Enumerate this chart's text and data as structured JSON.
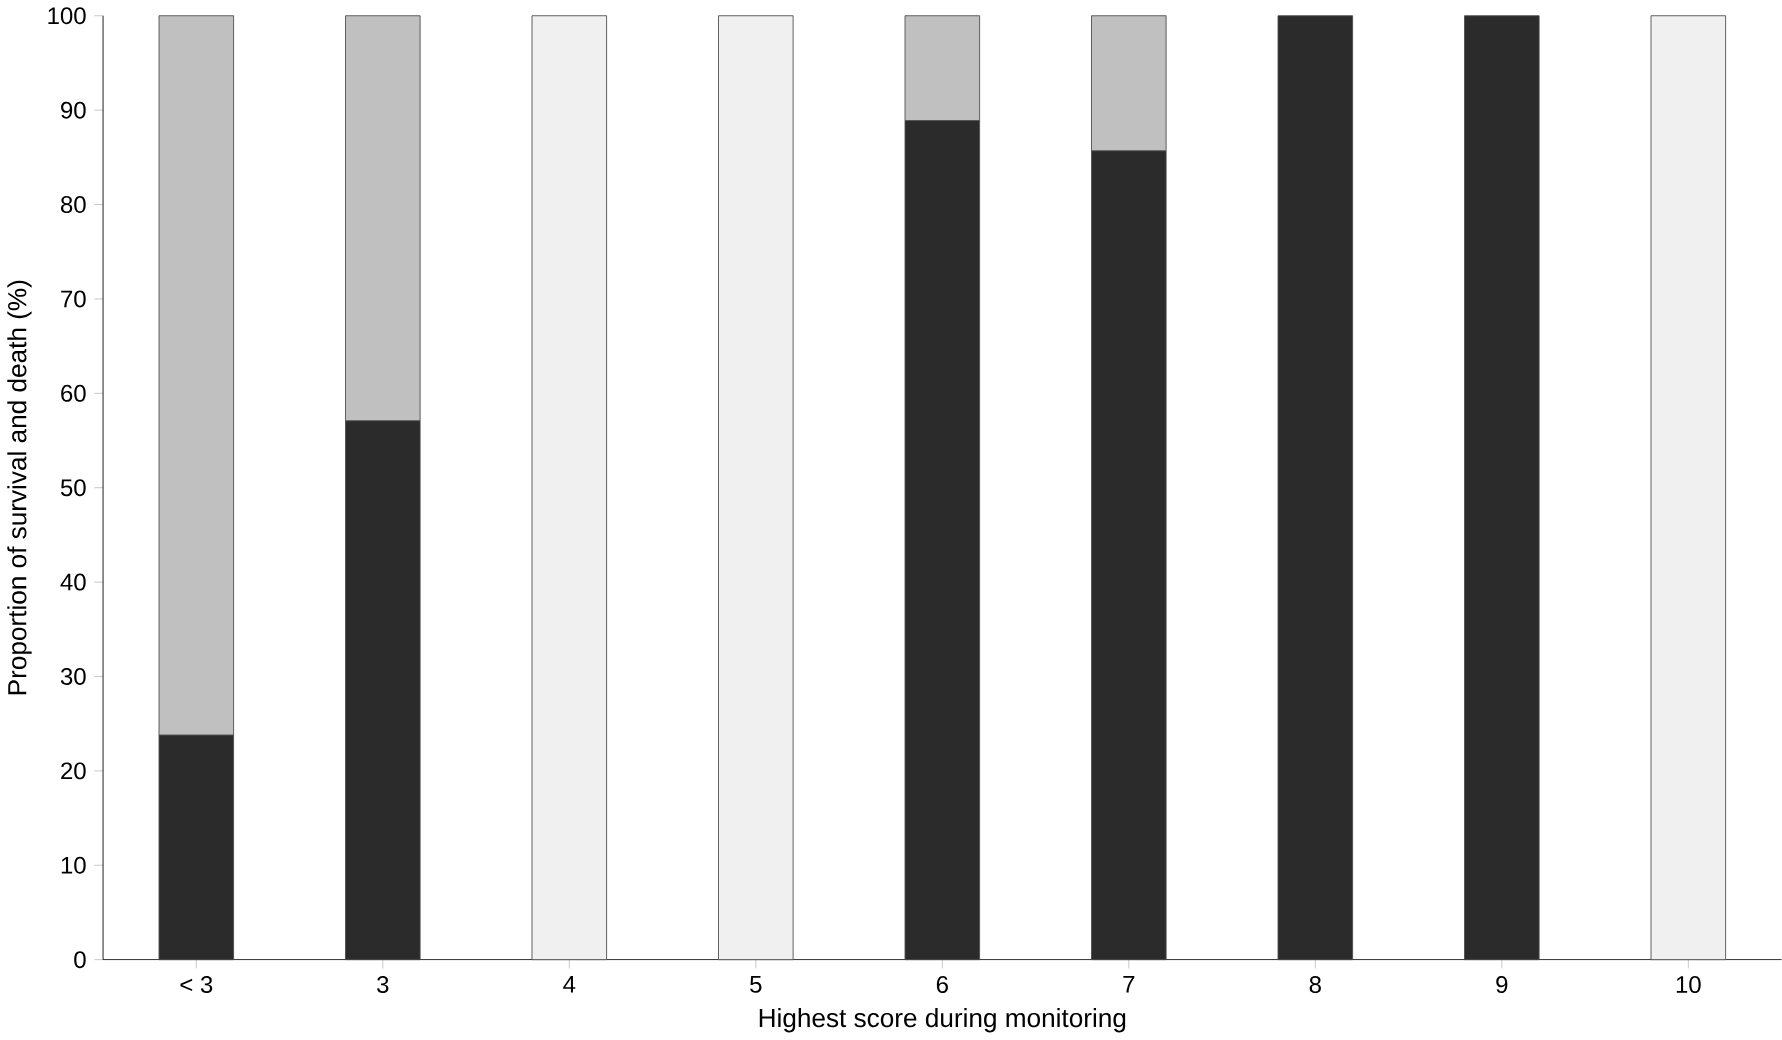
{
  "chart_data": {
    "type": "bar",
    "stacked": true,
    "xlabel": "Highest score during monitoring",
    "ylabel": "Proportion of survival and death (%)",
    "categories": [
      "< 3",
      "3",
      "4",
      "5",
      "6",
      "7",
      "8",
      "9",
      "10"
    ],
    "series": [
      {
        "color": "#2b2b2b",
        "values": [
          23.8,
          57.1,
          null,
          null,
          88.9,
          85.7,
          100,
          100,
          null
        ]
      },
      {
        "color": "#c0c0c0",
        "values": [
          76.2,
          42.9,
          null,
          null,
          11.1,
          14.3,
          null,
          null,
          null
        ]
      },
      {
        "color": "#f0f0f0",
        "values": [
          null,
          null,
          100,
          100,
          null,
          null,
          null,
          null,
          100
        ]
      }
    ],
    "ylim": [
      0,
      100
    ],
    "yticks": [
      0,
      10,
      20,
      30,
      40,
      50,
      60,
      70,
      80,
      90,
      100
    ],
    "grid": false,
    "legend": false
  }
}
